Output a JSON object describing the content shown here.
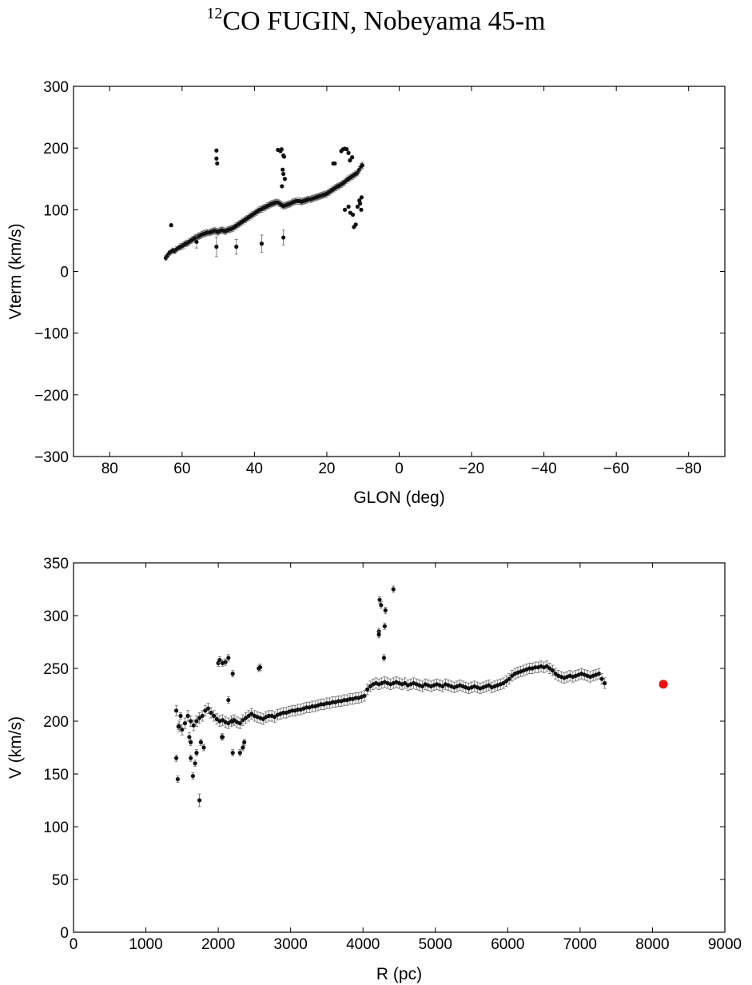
{
  "title": {
    "superscript": "12",
    "text": "CO FUGIN, Nobeyama 45-m"
  },
  "colors": {
    "points": "#111111",
    "errorbars": "#666666",
    "sun_marker": "#ee1111"
  },
  "chart_data": [
    {
      "type": "scatter",
      "title": "",
      "xlabel": "GLON (deg)",
      "ylabel": "Vterm (km/s)",
      "xlim": [
        90,
        -90
      ],
      "ylim": [
        -300,
        300
      ],
      "x_inverted": true,
      "xticks": [
        80,
        60,
        40,
        20,
        0,
        -20,
        -40,
        -60,
        -80
      ],
      "yticks": [
        -300,
        -200,
        -100,
        0,
        100,
        200,
        300
      ],
      "grid": false,
      "legend": "none",
      "series": [
        {
          "x": [
            64.5,
            64.0,
            63.5,
            63.0,
            62.5,
            62.0,
            61.5,
            61.0,
            60.5,
            60.0,
            59.5,
            59.0,
            58.5,
            58.0,
            57.5,
            57.0,
            56.5,
            56.0,
            55.5,
            55.0,
            54.5,
            54.0,
            53.5,
            53.0,
            52.5,
            52.0,
            51.5,
            51.0,
            50.5,
            50.0,
            49.5,
            49.0,
            48.5,
            48.0,
            47.5,
            47.0,
            46.5,
            46.0,
            45.5,
            45.0,
            44.5,
            44.0,
            43.5,
            43.0,
            42.5,
            42.0,
            41.5,
            41.0,
            40.5,
            40.0,
            39.5,
            39.0,
            38.5,
            38.0,
            37.5,
            37.0,
            36.5,
            36.0,
            35.5,
            35.0,
            34.5,
            34.0,
            33.5,
            33.0,
            32.5,
            32.0,
            31.5,
            31.0,
            30.5,
            30.0,
            29.5,
            29.0,
            28.5,
            28.0,
            27.5,
            27.0,
            26.5,
            26.0,
            25.5,
            25.0,
            24.5,
            24.0,
            23.5,
            23.0,
            22.5,
            22.0,
            21.5,
            21.0,
            20.5,
            20.0,
            19.5,
            19.0,
            18.5,
            18.0,
            17.5,
            17.0,
            16.5,
            16.0,
            15.5,
            15.0,
            14.5,
            14.0,
            13.5,
            13.0,
            12.5,
            12.0,
            11.5,
            11.0,
            10.5,
            10.2,
            63.0,
            50.5,
            50.5,
            50.3,
            33.5,
            32.8,
            32.5,
            32.0,
            31.8,
            32.2,
            32.0,
            31.6,
            32.4,
            18.2,
            17.8,
            16.0,
            15.5,
            15.0,
            14.5,
            14.0,
            13.6,
            13.0,
            12.8,
            12.5,
            12.0,
            11.5,
            11.0,
            10.8,
            10.5,
            10.4,
            15.0,
            14.0,
            13.5,
            45.0,
            38.0,
            32.0,
            50.5,
            56.0
          ],
          "y": [
            22,
            26,
            30,
            32,
            34,
            33,
            36,
            38,
            40,
            41,
            43,
            45,
            46,
            48,
            50,
            52,
            54,
            55,
            57,
            58,
            60,
            61,
            62,
            63,
            63,
            64,
            65,
            66,
            65,
            64,
            66,
            67,
            66,
            65,
            67,
            68,
            69,
            70,
            72,
            74,
            76,
            78,
            80,
            82,
            84,
            86,
            88,
            90,
            92,
            94,
            96,
            98,
            100,
            101,
            103,
            104,
            106,
            107,
            109,
            110,
            111,
            112,
            112,
            110,
            108,
            106,
            107,
            108,
            109,
            110,
            112,
            113,
            114,
            114,
            114,
            113,
            114,
            115,
            116,
            117,
            117,
            118,
            119,
            120,
            121,
            122,
            123,
            124,
            125,
            126,
            128,
            130,
            132,
            134,
            136,
            138,
            139,
            141,
            143,
            145,
            148,
            150,
            152,
            154,
            156,
            158,
            160,
            165,
            170,
            172,
            75,
            196,
            183,
            175,
            197,
            195,
            198,
            188,
            186,
            165,
            158,
            150,
            138,
            175,
            175,
            195,
            198,
            199,
            198,
            192,
            180,
            185,
            92,
            72,
            76,
            105,
            115,
            110,
            100,
            120,
            100,
            105,
            95,
            40,
            45,
            55,
            40,
            48
          ],
          "yerr": [
            4,
            4,
            4,
            4,
            4,
            4,
            4,
            4,
            5,
            5,
            5,
            5,
            5,
            5,
            5,
            5,
            5,
            5,
            5,
            5,
            5,
            5,
            5,
            5,
            5,
            5,
            5,
            5,
            5,
            5,
            5,
            5,
            5,
            5,
            5,
            5,
            5,
            5,
            5,
            5,
            5,
            5,
            5,
            5,
            5,
            5,
            5,
            5,
            5,
            5,
            5,
            5,
            5,
            5,
            5,
            5,
            5,
            5,
            5,
            5,
            5,
            5,
            5,
            5,
            5,
            5,
            5,
            5,
            5,
            5,
            5,
            5,
            5,
            5,
            5,
            5,
            5,
            5,
            5,
            5,
            5,
            5,
            5,
            5,
            5,
            5,
            5,
            5,
            5,
            5,
            5,
            5,
            5,
            5,
            5,
            5,
            5,
            5,
            5,
            5,
            5,
            5,
            5,
            5,
            5,
            5,
            5,
            5,
            5,
            5,
            2,
            2,
            2,
            2,
            2,
            2,
            2,
            2,
            2,
            2,
            2,
            2,
            2,
            2,
            2,
            2,
            2,
            2,
            2,
            2,
            2,
            2,
            2,
            2,
            2,
            2,
            2,
            2,
            2,
            2,
            2,
            2,
            2,
            12,
            14,
            12,
            16,
            10
          ]
        }
      ]
    },
    {
      "type": "scatter",
      "title": "",
      "xlabel": "R (pc)",
      "ylabel": "V (km/s)",
      "xlim": [
        0,
        9000
      ],
      "ylim": [
        0,
        350
      ],
      "xticks": [
        0,
        1000,
        2000,
        3000,
        4000,
        5000,
        6000,
        7000,
        8000,
        9000
      ],
      "yticks": [
        0,
        50,
        100,
        150,
        200,
        250,
        300,
        350
      ],
      "grid": false,
      "legend": "none",
      "series": [
        {
          "x": [
            1420,
            1460,
            1500,
            1540,
            1580,
            1620,
            1660,
            1700,
            1740,
            1780,
            1820,
            1860,
            1900,
            1940,
            1980,
            2020,
            2060,
            2100,
            2140,
            2180,
            2220,
            2260,
            2300,
            2340,
            2380,
            2420,
            2460,
            2500,
            2540,
            2580,
            2620,
            2660,
            2700,
            2740,
            2780,
            2820,
            2860,
            2900,
            2940,
            2980,
            3020,
            3060,
            3100,
            3140,
            3180,
            3220,
            3260,
            3300,
            3340,
            3380,
            3420,
            3460,
            3500,
            3540,
            3580,
            3620,
            3660,
            3700,
            3740,
            3780,
            3820,
            3860,
            3900,
            3940,
            3980,
            4020,
            4060,
            4100,
            4140,
            4180,
            4220,
            4260,
            4300,
            4340,
            4380,
            4420,
            4460,
            4500,
            4540,
            4580,
            4620,
            4660,
            4700,
            4740,
            4780,
            4820,
            4860,
            4900,
            4940,
            4980,
            5020,
            5060,
            5100,
            5140,
            5180,
            5220,
            5260,
            5300,
            5340,
            5380,
            5420,
            5460,
            5500,
            5540,
            5580,
            5620,
            5660,
            5700,
            5740,
            5780,
            5820,
            5860,
            5900,
            5940,
            5980,
            6020,
            6060,
            6100,
            6140,
            6180,
            6220,
            6260,
            6300,
            6340,
            6380,
            6420,
            6460,
            6500,
            6540,
            6580,
            6620,
            6660,
            6700,
            6740,
            6780,
            6820,
            6860,
            6900,
            6940,
            6980,
            7020,
            7060,
            7100,
            7140,
            7180,
            7220,
            7260,
            7300,
            7340,
            1420,
            1440,
            1480,
            1600,
            1620,
            1650,
            1680,
            1700,
            1740,
            1760,
            1800,
            2000,
            2020,
            2060,
            2100,
            2140,
            2200,
            2560,
            2580,
            2200,
            2140,
            2050,
            2300,
            2360,
            4220,
            4230,
            4250,
            4290,
            4310,
            4300,
            4420,
            4220,
            1450,
            1620,
            2060,
            2340,
            2200
          ],
          "y": [
            210,
            195,
            192,
            198,
            205,
            200,
            196,
            200,
            203,
            205,
            210,
            212,
            208,
            205,
            202,
            200,
            201,
            199,
            198,
            200,
            201,
            199,
            198,
            201,
            203,
            205,
            207,
            205,
            204,
            203,
            202,
            204,
            205,
            205,
            204,
            206,
            207,
            208,
            208,
            209,
            210,
            210,
            211,
            211,
            212,
            213,
            213,
            214,
            214,
            215,
            216,
            216,
            217,
            217,
            218,
            218,
            219,
            219,
            220,
            220,
            221,
            221,
            222,
            222,
            223,
            224,
            230,
            233,
            235,
            236,
            235,
            236,
            237,
            236,
            235,
            236,
            237,
            236,
            235,
            236,
            234,
            235,
            236,
            235,
            234,
            233,
            235,
            234,
            233,
            234,
            235,
            234,
            233,
            235,
            234,
            233,
            232,
            233,
            234,
            233,
            232,
            231,
            232,
            233,
            232,
            231,
            232,
            233,
            234,
            232,
            233,
            234,
            235,
            236,
            238,
            240,
            243,
            245,
            246,
            247,
            248,
            249,
            250,
            250,
            251,
            251,
            252,
            251,
            252,
            250,
            248,
            245,
            243,
            242,
            241,
            242,
            243,
            242,
            243,
            244,
            245,
            244,
            243,
            242,
            243,
            244,
            245,
            240,
            236,
            165,
            145,
            205,
            185,
            165,
            148,
            160,
            170,
            125,
            180,
            175,
            255,
            258,
            255,
            256,
            260,
            200,
            250,
            251,
            245,
            220,
            185,
            170,
            180,
            285,
            315,
            310,
            260,
            305,
            290,
            325,
            282,
            195,
            180,
            185,
            175,
            170
          ],
          "yerr": [
            5,
            5,
            5,
            5,
            5,
            5,
            5,
            5,
            5,
            5,
            5,
            5,
            5,
            5,
            5,
            5,
            5,
            5,
            5,
            5,
            5,
            5,
            5,
            5,
            5,
            5,
            5,
            5,
            5,
            5,
            5,
            5,
            5,
            5,
            5,
            5,
            5,
            5,
            5,
            5,
            5,
            5,
            5,
            5,
            5,
            5,
            5,
            5,
            5,
            5,
            5,
            5,
            5,
            5,
            5,
            5,
            5,
            5,
            5,
            5,
            5,
            5,
            5,
            5,
            5,
            5,
            5,
            5,
            5,
            5,
            5,
            5,
            5,
            5,
            5,
            5,
            5,
            5,
            5,
            5,
            5,
            5,
            5,
            5,
            5,
            5,
            5,
            5,
            5,
            5,
            5,
            5,
            5,
            5,
            5,
            5,
            5,
            5,
            5,
            5,
            5,
            5,
            5,
            5,
            5,
            5,
            5,
            5,
            5,
            5,
            5,
            5,
            5,
            5,
            5,
            5,
            5,
            5,
            5,
            5,
            5,
            5,
            5,
            5,
            5,
            5,
            5,
            5,
            5,
            5,
            5,
            5,
            5,
            5,
            5,
            5,
            5,
            5,
            5,
            5,
            5,
            5,
            5,
            5,
            5,
            5,
            5,
            5,
            5,
            3,
            3,
            3,
            4,
            3,
            3,
            3,
            3,
            6,
            3,
            3,
            3,
            3,
            3,
            3,
            3,
            3,
            3,
            3,
            3,
            3,
            3,
            3,
            3,
            3,
            3,
            3,
            3,
            3,
            3,
            3,
            3,
            3,
            3,
            3,
            3,
            3
          ]
        },
        {
          "name": "",
          "x": [
            8150
          ],
          "y": [
            235
          ],
          "marker": "large-red-circle"
        }
      ]
    }
  ]
}
